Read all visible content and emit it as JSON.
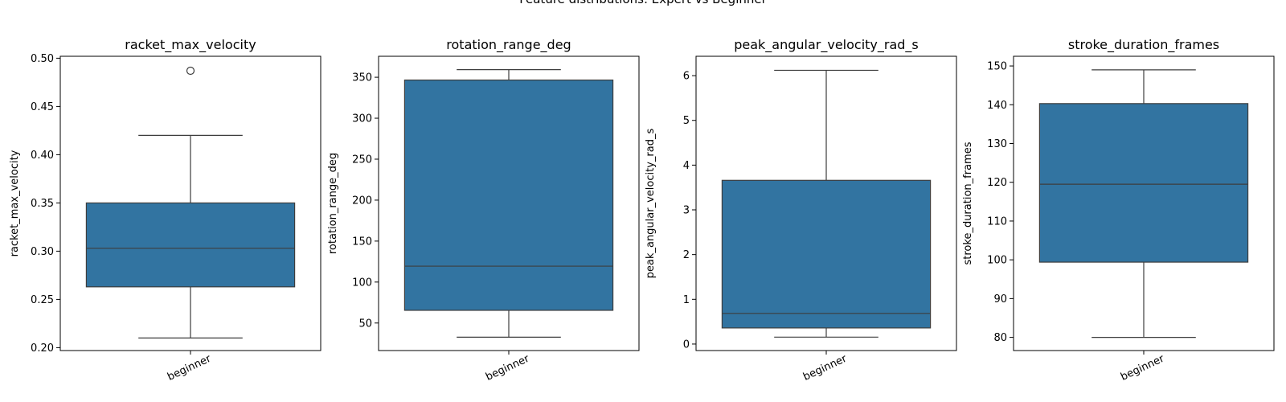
{
  "figure": {
    "suptitle": "Feature distributions: Expert vs Beginner"
  },
  "colors": {
    "box_fill": "#3274a1",
    "line": "#3d3d3d",
    "axes": "#000000",
    "background": "#ffffff"
  },
  "chart_data": [
    {
      "type": "box",
      "title": "racket_max_velocity",
      "xlabel": "",
      "ylabel": "racket_max_velocity",
      "categories": [
        "beginner"
      ],
      "ylim": [
        0.197,
        0.502
      ],
      "yticks": [
        0.2,
        0.25,
        0.3,
        0.35,
        0.4,
        0.45,
        0.5
      ],
      "ytick_labels": [
        "0.20",
        "0.25",
        "0.30",
        "0.35",
        "0.40",
        "0.45",
        "0.50"
      ],
      "boxes": [
        {
          "category": "beginner",
          "whisker_low": 0.21,
          "q1": 0.263,
          "median": 0.303,
          "q3": 0.35,
          "whisker_high": 0.42,
          "outliers": [
            0.487
          ]
        }
      ]
    },
    {
      "type": "box",
      "title": "rotation_range_deg",
      "xlabel": "",
      "ylabel": "rotation_range_deg",
      "categories": [
        "beginner"
      ],
      "ylim": [
        16.4,
        375.6
      ],
      "yticks": [
        50,
        100,
        150,
        200,
        250,
        300,
        350
      ],
      "ytick_labels": [
        "50",
        "100",
        "150",
        "200",
        "250",
        "300",
        "350"
      ],
      "boxes": [
        {
          "category": "beginner",
          "whisker_low": 32.7,
          "q1": 65.5,
          "median": 119.4,
          "q3": 346.6,
          "whisker_high": 359.3,
          "outliers": []
        }
      ]
    },
    {
      "type": "box",
      "title": "peak_angular_velocity_rad_s",
      "xlabel": "",
      "ylabel": "peak_angular_velocity_rad_s",
      "categories": [
        "beginner"
      ],
      "ylim": [
        -0.145,
        6.433
      ],
      "yticks": [
        0,
        1,
        2,
        3,
        4,
        5,
        6
      ],
      "ytick_labels": [
        "0",
        "1",
        "2",
        "3",
        "4",
        "5",
        "6"
      ],
      "boxes": [
        {
          "category": "beginner",
          "whisker_low": 0.155,
          "q1": 0.36,
          "median": 0.685,
          "q3": 3.66,
          "whisker_high": 6.12,
          "outliers": []
        }
      ]
    },
    {
      "type": "box",
      "title": "stroke_duration_frames",
      "xlabel": "",
      "ylabel": "stroke_duration_frames",
      "categories": [
        "beginner"
      ],
      "ylim": [
        76.6,
        152.5
      ],
      "yticks": [
        80,
        90,
        100,
        110,
        120,
        130,
        140,
        150
      ],
      "ytick_labels": [
        "80",
        "90",
        "100",
        "110",
        "120",
        "130",
        "140",
        "150"
      ],
      "boxes": [
        {
          "category": "beginner",
          "whisker_low": 80.0,
          "q1": 99.4,
          "median": 119.5,
          "q3": 140.3,
          "whisker_high": 149.0,
          "outliers": []
        }
      ]
    }
  ]
}
